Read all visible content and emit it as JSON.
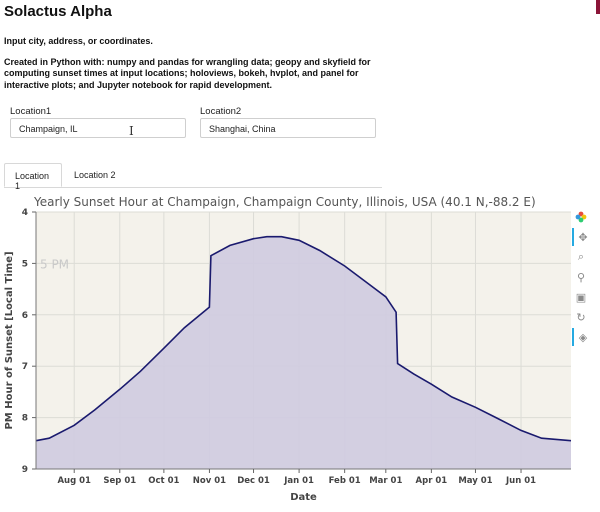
{
  "app": {
    "title": "Solactus Alpha",
    "prompt": "Input city, address, or coordinates.",
    "description": "Created in Python with: numpy and pandas for wrangling data; geopy and skyfield for computing sunset times at input locations; holoviews, bokeh, hvplot, and panel for interactive plots; and Jupyter notebook for rapid development."
  },
  "inputs": {
    "location1": {
      "label": "Location1",
      "value": "Champaign, IL"
    },
    "location2": {
      "label": "Location2",
      "value": "Shanghai, China"
    }
  },
  "tabs": [
    {
      "label": "Location 1",
      "active": true
    },
    {
      "label": "Location 2",
      "active": false
    }
  ],
  "toolbar": {
    "icons": [
      "bokeh-logo-icon",
      "pan-icon",
      "box-zoom-icon",
      "wheel-zoom-icon",
      "save-icon",
      "reset-icon",
      "hover-icon"
    ]
  },
  "colors": {
    "line": "#1a1a6e",
    "fill": "#cfcbe0",
    "background": "#f4f2eb",
    "grid": "#dcdcd6"
  },
  "chart_data": {
    "type": "area",
    "title": "Yearly Sunset Hour at Champaign, Champaign County, Illinois, USA (40.1 N,-88.2 E)",
    "xlabel": "Date",
    "ylabel": "PM Hour of Sunset [Local Time]",
    "x_ticks": [
      "Aug 01",
      "Sep 01",
      "Oct 01",
      "Nov 01",
      "Dec 01",
      "Jan 01",
      "Feb 01",
      "Mar 01",
      "Apr 01",
      "May 01",
      "Jun 01"
    ],
    "y_ticks": [
      "4",
      "5",
      "6",
      "7",
      "8",
      "9"
    ],
    "ylim": [
      4,
      9
    ],
    "y_inverted": true,
    "annotation": "5 PM",
    "grid": true,
    "x_start": "Jul 06",
    "x_end": "Jul 05",
    "series": [
      {
        "points": [
          [
            "Jul 06",
            8.45
          ],
          [
            "Jul 15",
            8.4
          ],
          [
            "Aug 01",
            8.15
          ],
          [
            "Aug 15",
            7.85
          ],
          [
            "Sep 01",
            7.45
          ],
          [
            "Sep 15",
            7.1
          ],
          [
            "Oct 01",
            6.65
          ],
          [
            "Oct 15",
            6.25
          ],
          [
            "Nov 01",
            5.85
          ],
          [
            "Nov 02",
            4.85
          ],
          [
            "Nov 15",
            4.65
          ],
          [
            "Dec 01",
            4.52
          ],
          [
            "Dec 10",
            4.48
          ],
          [
            "Dec 20",
            4.48
          ],
          [
            "Jan 01",
            4.55
          ],
          [
            "Jan 15",
            4.75
          ],
          [
            "Feb 01",
            5.05
          ],
          [
            "Feb 15",
            5.35
          ],
          [
            "Mar 01",
            5.65
          ],
          [
            "Mar 08",
            5.95
          ],
          [
            "Mar 09",
            6.95
          ],
          [
            "Mar 20",
            7.15
          ],
          [
            "Apr 01",
            7.35
          ],
          [
            "Apr 15",
            7.6
          ],
          [
            "May 01",
            7.8
          ],
          [
            "May 15",
            8.0
          ],
          [
            "Jun 01",
            8.25
          ],
          [
            "Jun 15",
            8.4
          ],
          [
            "Jul 05",
            8.45
          ]
        ]
      }
    ]
  }
}
